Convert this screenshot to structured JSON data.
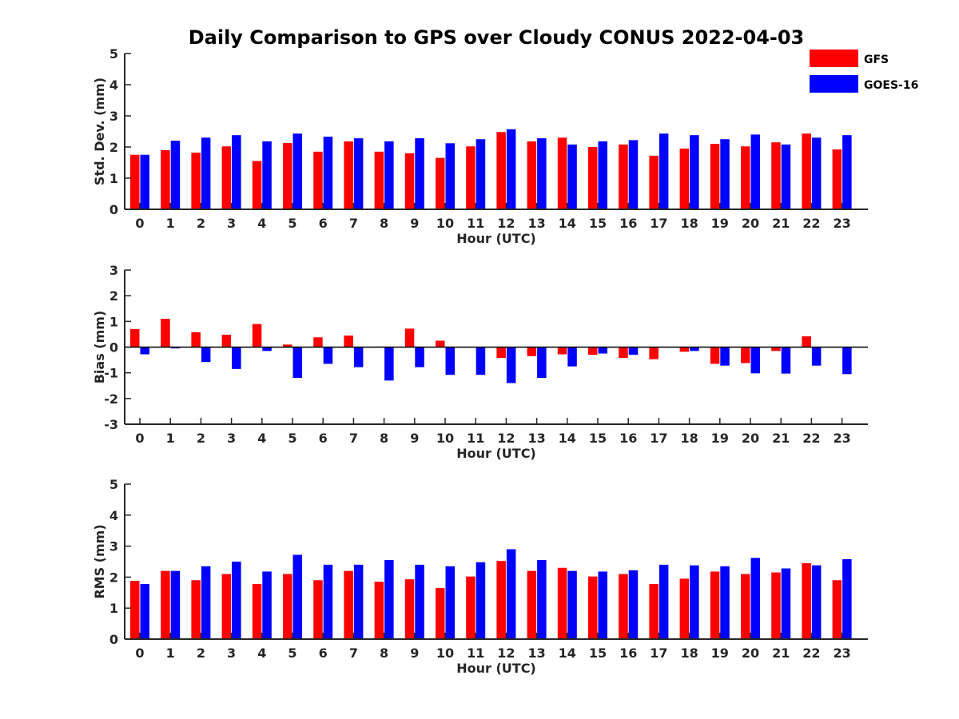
{
  "title": "Daily Comparison to GPS over Cloudy CONUS 2022-04-03",
  "legend": {
    "placement": "top-right",
    "entries": [
      {
        "name": "GFS",
        "color": "#ff0000"
      },
      {
        "name": "GOES-16",
        "color": "#0000ff"
      }
    ]
  },
  "chart_data": [
    {
      "type": "bar",
      "xlabel": "Hour (UTC)",
      "ylabel": "Std. Dev. (mm)",
      "ylim": [
        0,
        5
      ],
      "yticks": [
        0,
        1,
        2,
        3,
        4,
        5
      ],
      "categories": [
        "0",
        "1",
        "2",
        "3",
        "4",
        "5",
        "6",
        "7",
        "8",
        "9",
        "10",
        "11",
        "12",
        "13",
        "14",
        "15",
        "16",
        "17",
        "18",
        "19",
        "20",
        "21",
        "22",
        "23"
      ],
      "series": [
        {
          "name": "GFS",
          "color": "#ff0000",
          "values": [
            1.75,
            1.9,
            1.82,
            2.02,
            1.55,
            2.13,
            1.85,
            2.18,
            1.85,
            1.8,
            1.65,
            2.02,
            2.48,
            2.18,
            2.3,
            2.0,
            2.08,
            1.72,
            1.95,
            2.1,
            2.02,
            2.15,
            2.43,
            1.92
          ]
        },
        {
          "name": "GOES-16",
          "color": "#0000ff",
          "values": [
            1.75,
            2.2,
            2.3,
            2.38,
            2.18,
            2.43,
            2.33,
            2.28,
            2.18,
            2.28,
            2.12,
            2.25,
            2.57,
            2.28,
            2.08,
            2.18,
            2.22,
            2.43,
            2.38,
            2.25,
            2.4,
            2.08,
            2.3,
            2.38
          ]
        }
      ]
    },
    {
      "type": "bar",
      "xlabel": "Hour (UTC)",
      "ylabel": "Bias (mm)",
      "ylim": [
        -3,
        3
      ],
      "yticks": [
        -3,
        -2,
        -1,
        0,
        1,
        2,
        3
      ],
      "zero_line": true,
      "categories": [
        "0",
        "1",
        "2",
        "3",
        "4",
        "5",
        "6",
        "7",
        "8",
        "9",
        "10",
        "11",
        "12",
        "13",
        "14",
        "15",
        "16",
        "17",
        "18",
        "19",
        "20",
        "21",
        "22",
        "23"
      ],
      "series": [
        {
          "name": "GFS",
          "color": "#ff0000",
          "values": [
            0.7,
            1.1,
            0.58,
            0.48,
            0.9,
            0.1,
            0.38,
            0.45,
            0.02,
            0.72,
            0.25,
            0.0,
            -0.42,
            -0.35,
            -0.28,
            -0.3,
            -0.42,
            -0.47,
            -0.18,
            -0.65,
            -0.62,
            -0.15,
            0.42,
            0.0
          ]
        },
        {
          "name": "GOES-16",
          "color": "#0000ff",
          "values": [
            -0.28,
            -0.05,
            -0.58,
            -0.85,
            -0.15,
            -1.2,
            -0.65,
            -0.78,
            -1.3,
            -0.78,
            -1.08,
            -1.08,
            -1.4,
            -1.2,
            -0.75,
            -0.25,
            -0.3,
            0.0,
            -0.15,
            -0.72,
            -1.02,
            -1.03,
            -0.72,
            -1.05
          ]
        }
      ]
    },
    {
      "type": "bar",
      "xlabel": "Hour (UTC)",
      "ylabel": "RMS (mm)",
      "ylim": [
        0,
        5
      ],
      "yticks": [
        0,
        1,
        2,
        3,
        4,
        5
      ],
      "categories": [
        "0",
        "1",
        "2",
        "3",
        "4",
        "5",
        "6",
        "7",
        "8",
        "9",
        "10",
        "11",
        "12",
        "13",
        "14",
        "15",
        "16",
        "17",
        "18",
        "19",
        "20",
        "21",
        "22",
        "23"
      ],
      "series": [
        {
          "name": "GFS",
          "color": "#ff0000",
          "values": [
            1.88,
            2.2,
            1.9,
            2.1,
            1.78,
            2.1,
            1.9,
            2.2,
            1.85,
            1.93,
            1.65,
            2.02,
            2.52,
            2.2,
            2.3,
            2.02,
            2.1,
            1.78,
            1.95,
            2.18,
            2.1,
            2.15,
            2.45,
            1.9
          ]
        },
        {
          "name": "GOES-16",
          "color": "#0000ff",
          "values": [
            1.78,
            2.2,
            2.35,
            2.5,
            2.18,
            2.72,
            2.4,
            2.4,
            2.55,
            2.4,
            2.35,
            2.48,
            2.9,
            2.55,
            2.2,
            2.18,
            2.22,
            2.4,
            2.38,
            2.35,
            2.62,
            2.28,
            2.38,
            2.58
          ]
        }
      ]
    }
  ]
}
